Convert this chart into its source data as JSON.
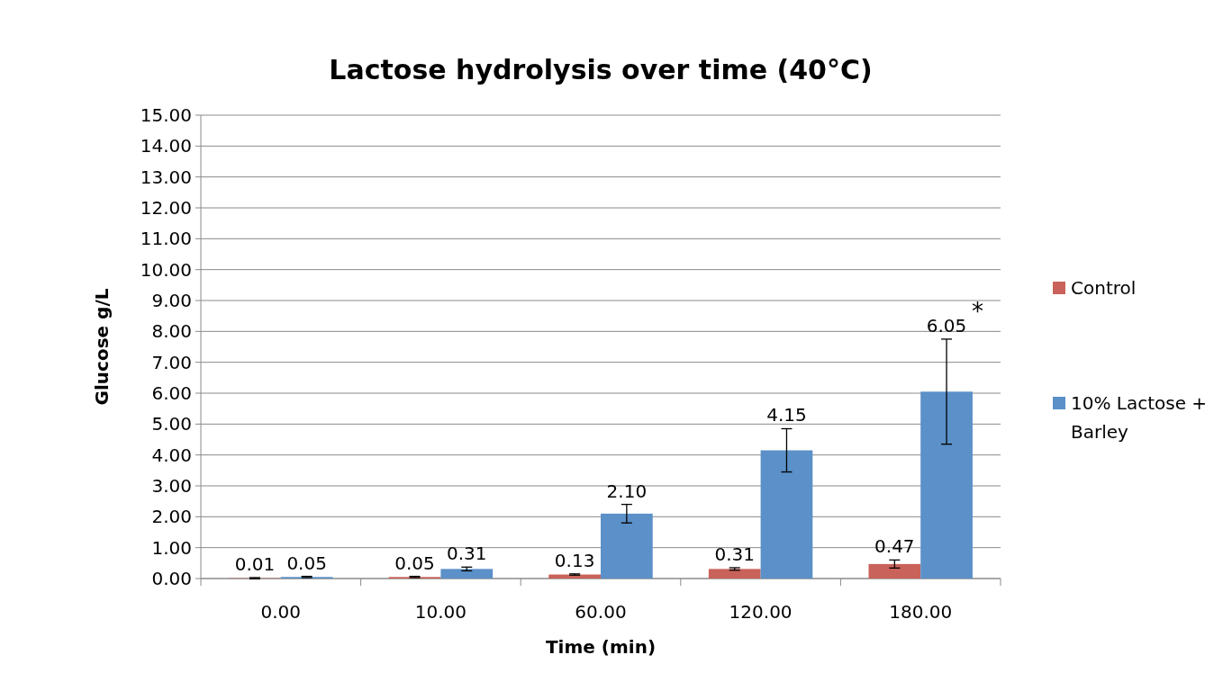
{
  "chart_data": {
    "type": "bar",
    "title": "Lactose hydrolysis over time (40°C)",
    "xlabel": "Time (min)",
    "ylabel": "Glucose g/L",
    "categories": [
      "0.00",
      "10.00",
      "60.00",
      "120.00",
      "180.00"
    ],
    "series": [
      {
        "name": "Control",
        "color": "#c9625a",
        "values": [
          0.01,
          0.05,
          0.13,
          0.31,
          0.47
        ],
        "errors": [
          0.02,
          0.02,
          0.02,
          0.04,
          0.13
        ],
        "value_labels": [
          "0.01",
          "0.05",
          "0.13",
          "0.31",
          "0.47"
        ]
      },
      {
        "name": "10% Lactose + Barley",
        "color": "#5b90c8",
        "values": [
          0.05,
          0.31,
          2.1,
          4.15,
          6.05
        ],
        "errors": [
          0.02,
          0.06,
          0.3,
          0.7,
          1.7
        ],
        "value_labels": [
          "0.05",
          "0.31",
          "2.10",
          "4.15",
          "6.05"
        ]
      }
    ],
    "ylim": [
      0,
      15
    ],
    "yticks": [
      {
        "value": 0,
        "label": "0.00"
      },
      {
        "value": 1,
        "label": "1.00"
      },
      {
        "value": 2,
        "label": "2.00"
      },
      {
        "value": 3,
        "label": "3.00"
      },
      {
        "value": 4,
        "label": "4.00"
      },
      {
        "value": 5,
        "label": "5.00"
      },
      {
        "value": 6,
        "label": "6.00"
      },
      {
        "value": 7,
        "label": "7.00"
      },
      {
        "value": 8,
        "label": "8.00"
      },
      {
        "value": 9,
        "label": "9.00"
      },
      {
        "value": 10,
        "label": "10.00"
      },
      {
        "value": 11,
        "label": "11.00"
      },
      {
        "value": 12,
        "label": "12.00"
      },
      {
        "value": 13,
        "label": "13.00"
      },
      {
        "value": 14,
        "label": "14.00"
      },
      {
        "value": 15,
        "label": "15.00"
      }
    ],
    "annotations": [
      "*"
    ],
    "grid": "y",
    "legend": "right"
  }
}
